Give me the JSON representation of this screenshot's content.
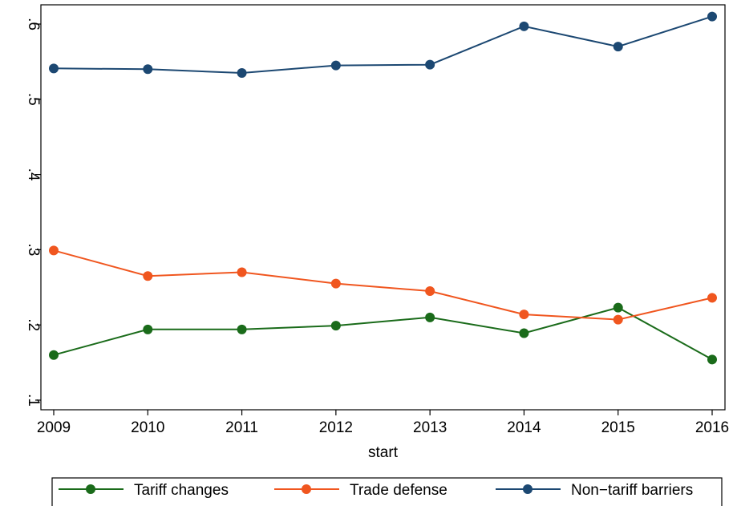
{
  "chart_data": {
    "type": "line",
    "title": "",
    "xlabel": "start",
    "ylabel": "",
    "x": [
      2009,
      2010,
      2011,
      2012,
      2013,
      2014,
      2015,
      2016
    ],
    "xlim": [
      2009,
      2016
    ],
    "ylim": [
      0.1,
      0.6
    ],
    "x_ticks": [
      2009,
      2010,
      2011,
      2012,
      2013,
      2014,
      2015,
      2016
    ],
    "x_tick_labels": [
      "2009",
      "2010",
      "2011",
      "2012",
      "2013",
      "2014",
      "2015",
      "2016"
    ],
    "y_ticks": [
      0.1,
      0.2,
      0.3,
      0.4,
      0.5,
      0.6
    ],
    "y_tick_labels": [
      ".1",
      ".2",
      ".3",
      ".4",
      ".5",
      ".6"
    ],
    "grid": false,
    "legend_position": "bottom",
    "series": [
      {
        "name": "Tariff changes",
        "color": "#1a6b1a",
        "values": [
          0.16,
          0.194,
          0.194,
          0.199,
          0.21,
          0.189,
          0.223,
          0.154
        ]
      },
      {
        "name": "Trade defense",
        "color": "#f0561f",
        "values": [
          0.299,
          0.265,
          0.27,
          0.255,
          0.245,
          0.214,
          0.207,
          0.236
        ]
      },
      {
        "name": "Non−tariff barriers",
        "color": "#1c4872",
        "values": [
          0.541,
          0.54,
          0.535,
          0.545,
          0.546,
          0.597,
          0.57,
          0.61
        ]
      }
    ]
  }
}
